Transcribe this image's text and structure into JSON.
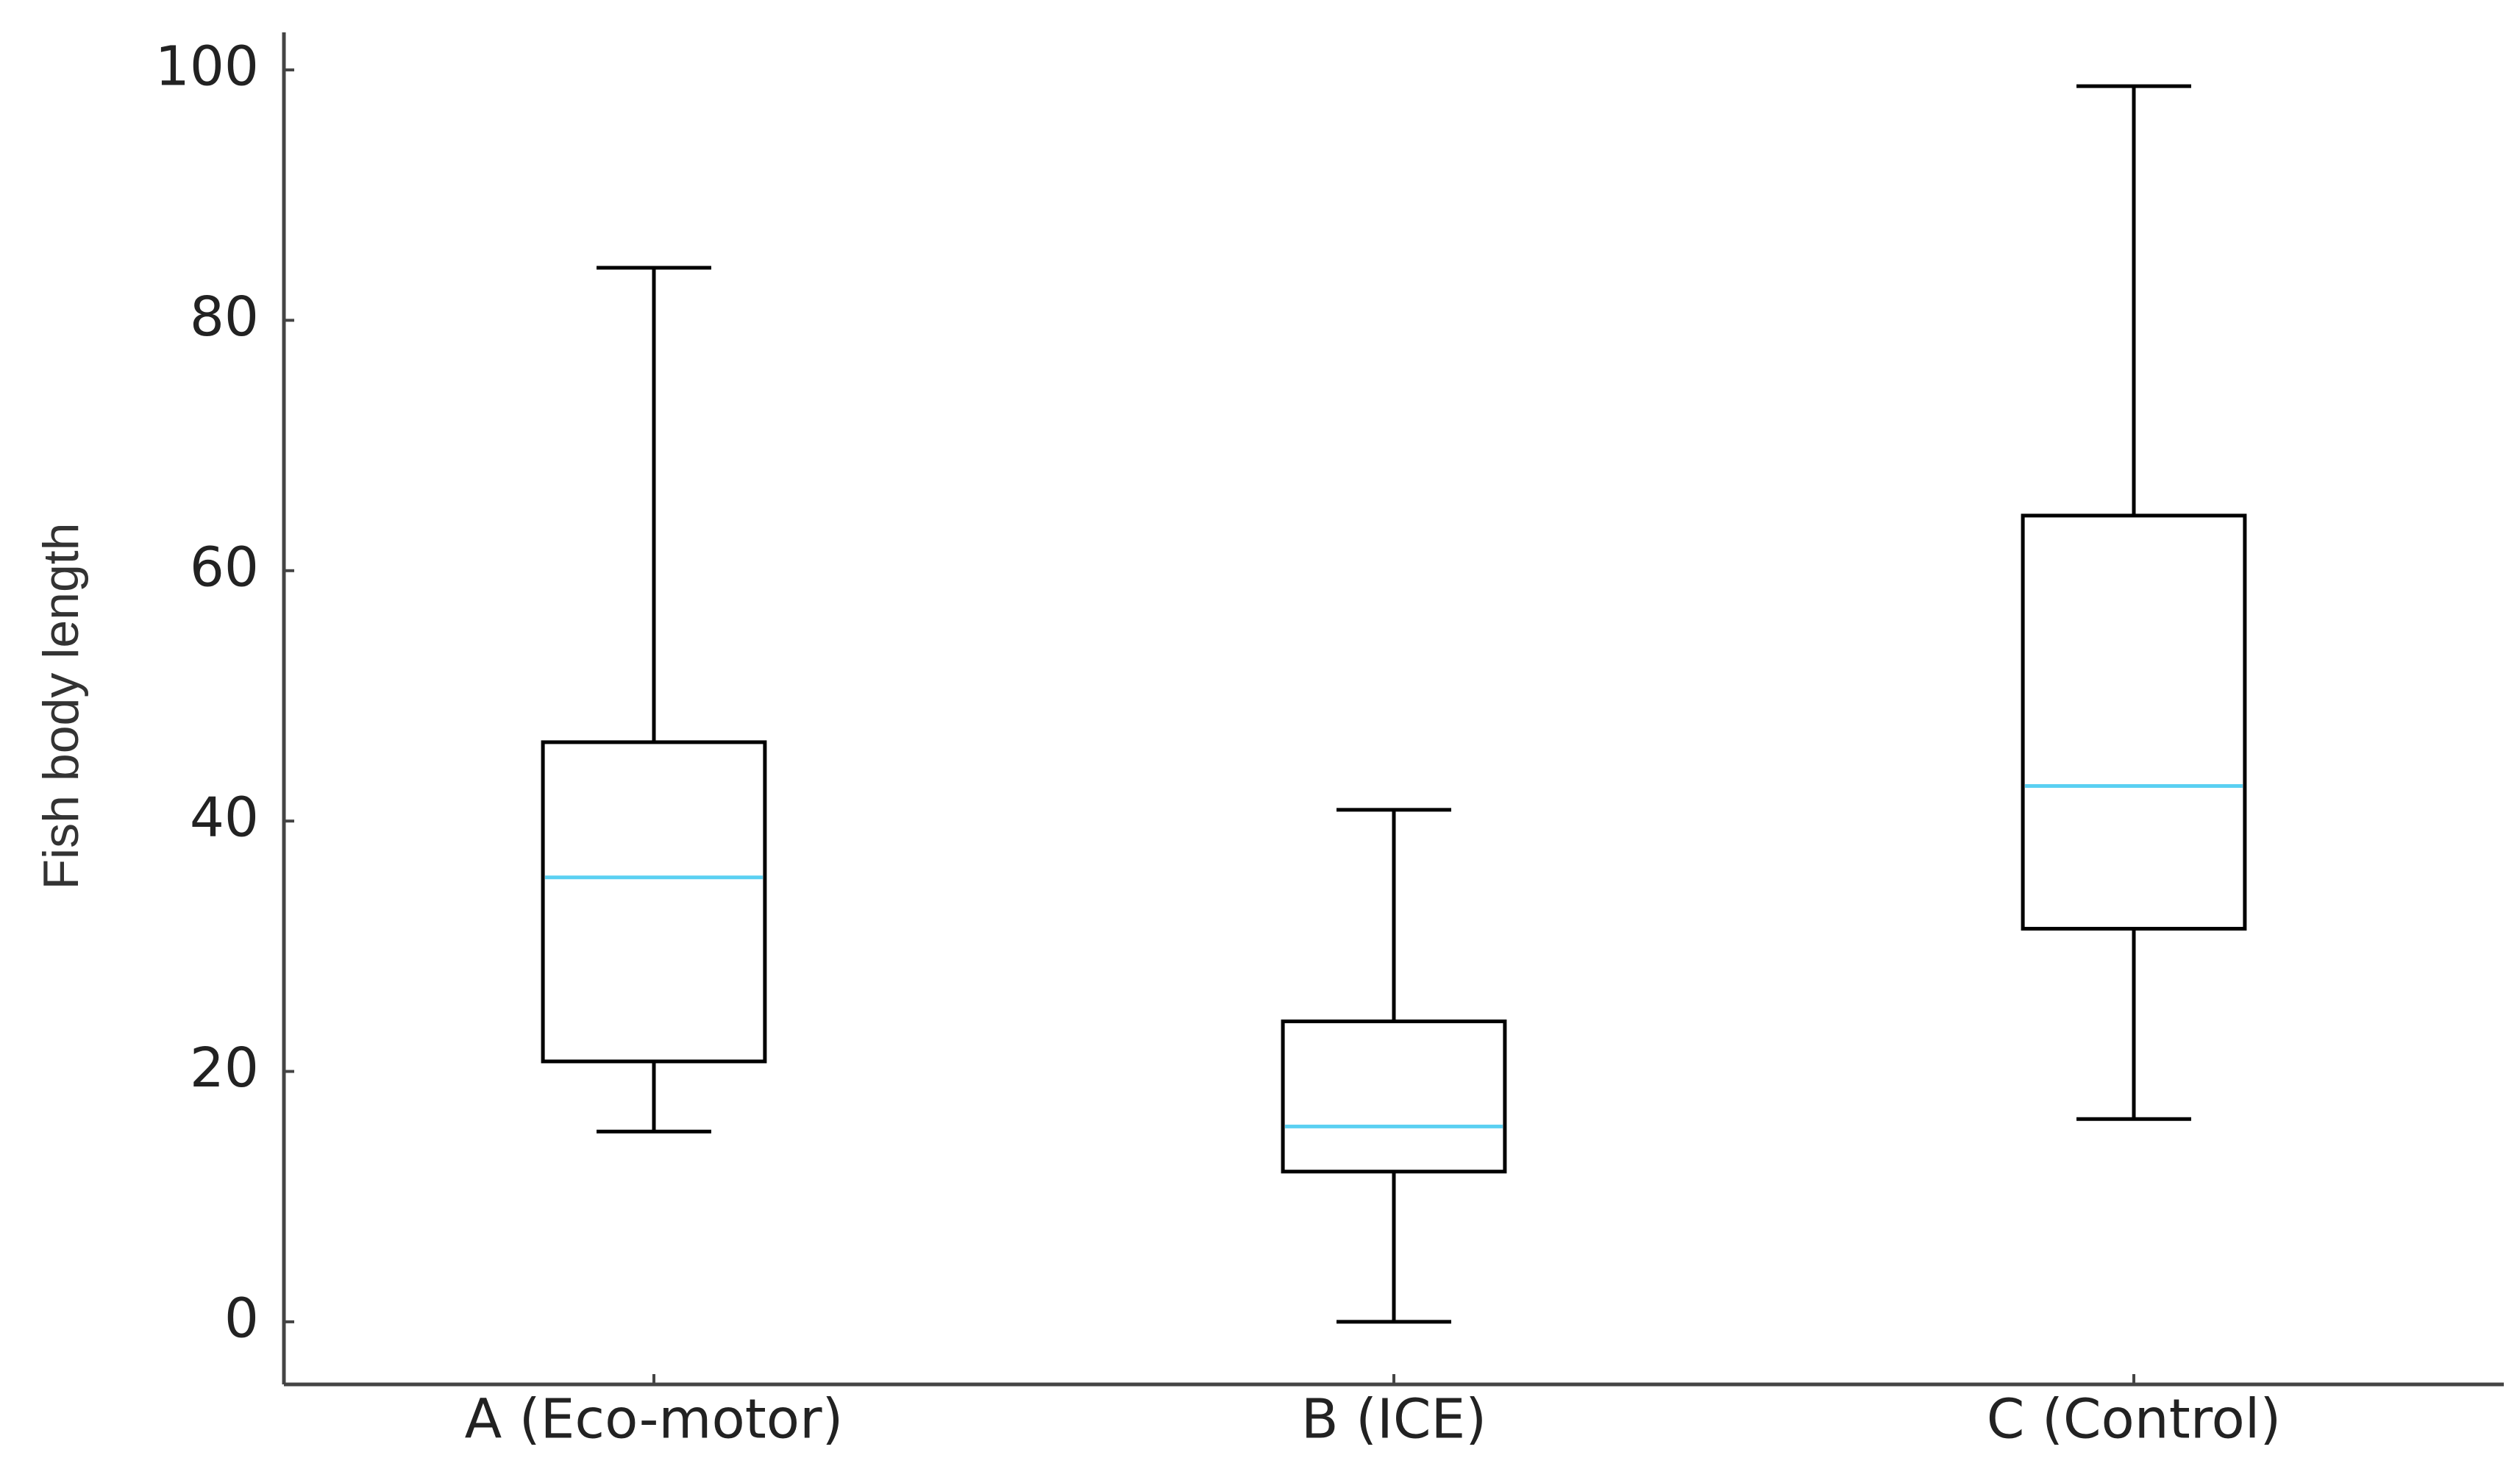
{
  "chart_data": {
    "type": "box",
    "ylabel": "Fish body length",
    "categories": [
      "A (Eco-motor)",
      "B (ICE)",
      "C (Control)"
    ],
    "boxes": [
      {
        "min": 15.2,
        "q1": 20.8,
        "median": 35.5,
        "q3": 46.3,
        "max": 84.2
      },
      {
        "min": 0,
        "q1": 12.0,
        "median": 15.6,
        "q3": 24.0,
        "max": 40.9
      },
      {
        "min": 16.2,
        "q1": 31.4,
        "median": 42.8,
        "q3": 64.4,
        "max": 98.7
      }
    ],
    "color": "#000000",
    "median_color": "#5ad0f2",
    "ylim": [
      -5,
      103
    ],
    "yticks": [
      0,
      20,
      40,
      60,
      80,
      100
    ]
  }
}
